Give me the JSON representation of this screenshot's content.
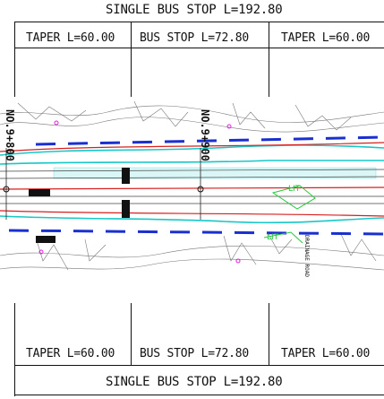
{
  "top": {
    "overall_label": "SINGLE BUS STOP L=192.80",
    "segments": [
      "TAPER L=60.00",
      "BUS STOP L=72.80",
      "TAPER L=60.00"
    ]
  },
  "bottom": {
    "segments": [
      "TAPER L=60.00",
      "BUS STOP L=72.80",
      "TAPER L=60.00"
    ],
    "overall_label": "SINGLE BUS STOP L=192.80"
  },
  "stations": [
    "NO.9+800",
    "NO.9+900"
  ],
  "side_label": "DRAINAGE ROAD",
  "colors": {
    "frame": "#111111",
    "centerline": "#d62020",
    "lane_marking": "#1a2fd0",
    "cyan_edge": "#18c7c7",
    "green_text": "#24c93a",
    "survey_line": "#666666",
    "magenta": "#e020e0"
  }
}
